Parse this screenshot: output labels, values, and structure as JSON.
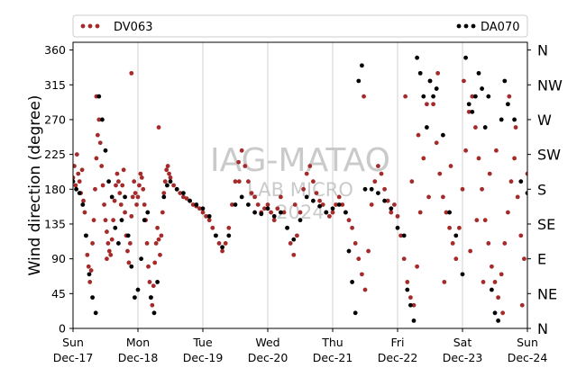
{
  "chart_data": {
    "type": "scatter",
    "ylabel": "Wind direction (degree)",
    "ylim": [
      0,
      370
    ],
    "yticks": [
      0,
      45,
      90,
      135,
      180,
      225,
      270,
      315,
      360
    ],
    "x_days": 7,
    "xticks": [
      {
        "day": "Sun",
        "date": "Dec-17"
      },
      {
        "day": "Mon",
        "date": "Dec-18"
      },
      {
        "day": "Tue",
        "date": "Dec-19"
      },
      {
        "day": "Wed",
        "date": "Dec-20"
      },
      {
        "day": "Thu",
        "date": "Dec-21"
      },
      {
        "day": "Fri",
        "date": "Dec-22"
      },
      {
        "day": "Sat",
        "date": "Dec-23"
      },
      {
        "day": "Sun",
        "date": "Dec-24"
      }
    ],
    "compass_labels": [
      "N",
      "NE",
      "E",
      "SE",
      "S",
      "SW",
      "W",
      "NW",
      "N"
    ],
    "grid": "vertical",
    "legend_placement": "top",
    "series": [
      {
        "name": "DV063",
        "color": "#a52a2a",
        "points": [
          [
            0.0,
            195
          ],
          [
            0.02,
            210
          ],
          [
            0.04,
            185
          ],
          [
            0.06,
            225
          ],
          [
            0.08,
            200
          ],
          [
            0.1,
            190
          ],
          [
            0.12,
            175
          ],
          [
            0.14,
            205
          ],
          [
            0.16,
            165
          ],
          [
            0.18,
            150
          ],
          [
            0.2,
            120
          ],
          [
            0.22,
            95
          ],
          [
            0.24,
            80
          ],
          [
            0.26,
            60
          ],
          [
            0.28,
            75
          ],
          [
            0.3,
            110
          ],
          [
            0.32,
            140
          ],
          [
            0.34,
            180
          ],
          [
            0.36,
            220
          ],
          [
            0.38,
            250
          ],
          [
            0.4,
            270
          ],
          [
            0.42,
            240
          ],
          [
            0.44,
            210
          ],
          [
            0.46,
            185
          ],
          [
            0.48,
            160
          ],
          [
            0.5,
            140
          ],
          [
            0.52,
            125
          ],
          [
            0.54,
            110
          ],
          [
            0.56,
            100
          ],
          [
            0.58,
            95
          ],
          [
            0.6,
            115
          ],
          [
            0.62,
            140
          ],
          [
            0.64,
            165
          ],
          [
            0.66,
            185
          ],
          [
            0.68,
            200
          ],
          [
            0.7,
            190
          ],
          [
            0.72,
            175
          ],
          [
            0.74,
            160
          ],
          [
            0.76,
            185
          ],
          [
            0.78,
            205
          ],
          [
            0.8,
            150
          ],
          [
            0.82,
            120
          ],
          [
            0.84,
            100
          ],
          [
            0.86,
            85
          ],
          [
            0.88,
            110
          ],
          [
            0.9,
            145
          ],
          [
            0.92,
            170
          ],
          [
            0.94,
            190
          ],
          [
            0.96,
            175
          ],
          [
            0.98,
            160
          ],
          [
            1.0,
            170
          ],
          [
            1.02,
            185
          ],
          [
            1.04,
            200
          ],
          [
            1.06,
            195
          ],
          [
            1.08,
            180
          ],
          [
            1.1,
            160
          ],
          [
            1.12,
            140
          ],
          [
            1.14,
            110
          ],
          [
            1.16,
            80
          ],
          [
            1.18,
            60
          ],
          [
            1.2,
            40
          ],
          [
            1.22,
            30
          ],
          [
            1.24,
            55
          ],
          [
            1.26,
            85
          ],
          [
            1.28,
            110
          ],
          [
            1.3,
            130
          ],
          [
            1.32,
            115
          ],
          [
            1.34,
            95
          ],
          [
            1.36,
            120
          ],
          [
            1.38,
            150
          ],
          [
            1.4,
            175
          ],
          [
            1.42,
            190
          ],
          [
            1.44,
            205
          ],
          [
            1.46,
            210
          ],
          [
            1.48,
            200
          ],
          [
            1.5,
            195
          ],
          [
            1.55,
            185
          ],
          [
            1.6,
            180
          ],
          [
            1.65,
            175
          ],
          [
            1.7,
            170
          ],
          [
            1.75,
            168
          ],
          [
            1.8,
            165
          ],
          [
            1.85,
            160
          ],
          [
            1.9,
            158
          ],
          [
            1.95,
            155
          ],
          [
            2.0,
            150
          ],
          [
            2.05,
            145
          ],
          [
            2.1,
            140
          ],
          [
            2.15,
            130
          ],
          [
            2.2,
            120
          ],
          [
            2.25,
            110
          ],
          [
            2.3,
            100
          ],
          [
            2.35,
            110
          ],
          [
            2.4,
            130
          ],
          [
            2.45,
            160
          ],
          [
            2.5,
            190
          ],
          [
            2.55,
            215
          ],
          [
            2.6,
            230
          ],
          [
            2.65,
            210
          ],
          [
            2.7,
            190
          ],
          [
            2.75,
            175
          ],
          [
            2.8,
            170
          ],
          [
            2.85,
            160
          ],
          [
            2.9,
            150
          ],
          [
            2.95,
            155
          ],
          [
            3.0,
            160
          ],
          [
            3.05,
            150
          ],
          [
            3.1,
            140
          ],
          [
            3.15,
            155
          ],
          [
            3.2,
            170
          ],
          [
            3.25,
            150
          ],
          [
            3.3,
            130
          ],
          [
            3.35,
            110
          ],
          [
            3.4,
            95
          ],
          [
            3.45,
            120
          ],
          [
            3.5,
            150
          ],
          [
            3.55,
            180
          ],
          [
            3.6,
            200
          ],
          [
            3.65,
            210
          ],
          [
            3.7,
            190
          ],
          [
            3.75,
            175
          ],
          [
            3.8,
            165
          ],
          [
            3.85,
            160
          ],
          [
            3.9,
            150
          ],
          [
            3.95,
            145
          ],
          [
            4.0,
            150
          ],
          [
            4.05,
            160
          ],
          [
            4.1,
            170
          ],
          [
            4.15,
            160
          ],
          [
            4.2,
            150
          ],
          [
            4.25,
            140
          ],
          [
            4.3,
            130
          ],
          [
            4.35,
            110
          ],
          [
            4.4,
            90
          ],
          [
            4.45,
            70
          ],
          [
            4.5,
            50
          ],
          [
            4.55,
            100
          ],
          [
            4.6,
            160
          ],
          [
            4.65,
            190
          ],
          [
            4.7,
            210
          ],
          [
            4.75,
            200
          ],
          [
            4.8,
            180
          ],
          [
            4.85,
            165
          ],
          [
            4.9,
            150
          ],
          [
            4.95,
            160
          ],
          [
            5.0,
            145
          ],
          [
            5.05,
            120
          ],
          [
            5.1,
            90
          ],
          [
            5.15,
            60
          ],
          [
            5.2,
            40
          ],
          [
            5.25,
            30
          ],
          [
            5.3,
            80
          ],
          [
            5.35,
            150
          ],
          [
            5.4,
            220
          ],
          [
            5.45,
            290
          ],
          [
            5.5,
            320
          ],
          [
            5.55,
            290
          ],
          [
            5.6,
            240
          ],
          [
            5.65,
            200
          ],
          [
            5.7,
            170
          ],
          [
            5.75,
            150
          ],
          [
            5.8,
            130
          ],
          [
            5.85,
            110
          ],
          [
            5.9,
            90
          ],
          [
            5.95,
            130
          ],
          [
            6.0,
            180
          ],
          [
            6.05,
            230
          ],
          [
            6.1,
            280
          ],
          [
            6.15,
            300
          ],
          [
            6.2,
            260
          ],
          [
            6.25,
            220
          ],
          [
            6.3,
            180
          ],
          [
            6.35,
            140
          ],
          [
            6.4,
            110
          ],
          [
            6.45,
            80
          ],
          [
            6.5,
            60
          ],
          [
            6.55,
            40
          ],
          [
            6.6,
            70
          ],
          [
            6.65,
            110
          ],
          [
            6.7,
            150
          ],
          [
            6.75,
            190
          ],
          [
            6.8,
            220
          ],
          [
            6.85,
            170
          ],
          [
            6.9,
            120
          ],
          [
            6.95,
            90
          ],
          [
            7.0,
            200
          ],
          [
            5.12,
            300
          ],
          [
            5.32,
            250
          ],
          [
            5.62,
            330
          ],
          [
            5.82,
            210
          ],
          [
            6.12,
            100
          ],
          [
            6.32,
            60
          ],
          [
            6.52,
            230
          ],
          [
            6.72,
            300
          ],
          [
            6.92,
            30
          ],
          [
            5.22,
            190
          ],
          [
            5.48,
            170
          ],
          [
            5.72,
            60
          ],
          [
            6.02,
            320
          ],
          [
            6.22,
            140
          ],
          [
            6.42,
            200
          ],
          [
            6.62,
            20
          ],
          [
            6.82,
            260
          ],
          [
            0.36,
            300
          ],
          [
            0.52,
            90
          ],
          [
            0.9,
            330
          ],
          [
            1.32,
            260
          ],
          [
            2.56,
            190
          ],
          [
            3.42,
            160
          ],
          [
            4.48,
            300
          ]
        ]
      },
      {
        "name": "DA070",
        "color": "#000000",
        "points": [
          [
            0.0,
            190
          ],
          [
            0.05,
            180
          ],
          [
            0.1,
            175
          ],
          [
            0.15,
            160
          ],
          [
            0.2,
            120
          ],
          [
            0.25,
            70
          ],
          [
            0.3,
            40
          ],
          [
            0.35,
            20
          ],
          [
            0.4,
            300
          ],
          [
            0.45,
            270
          ],
          [
            0.5,
            230
          ],
          [
            0.55,
            190
          ],
          [
            0.6,
            170
          ],
          [
            0.65,
            130
          ],
          [
            0.7,
            110
          ],
          [
            0.75,
            140
          ],
          [
            0.8,
            170
          ],
          [
            0.85,
            120
          ],
          [
            0.9,
            80
          ],
          [
            0.95,
            40
          ],
          [
            1.0,
            50
          ],
          [
            1.05,
            90
          ],
          [
            1.1,
            140
          ],
          [
            1.15,
            150
          ],
          [
            1.2,
            40
          ],
          [
            1.25,
            20
          ],
          [
            1.3,
            60
          ],
          [
            1.4,
            170
          ],
          [
            1.45,
            185
          ],
          [
            1.5,
            190
          ],
          [
            1.6,
            180
          ],
          [
            1.7,
            175
          ],
          [
            1.8,
            165
          ],
          [
            1.9,
            160
          ],
          [
            2.0,
            155
          ],
          [
            2.1,
            145
          ],
          [
            2.2,
            120
          ],
          [
            2.3,
            105
          ],
          [
            2.4,
            120
          ],
          [
            2.5,
            160
          ],
          [
            2.6,
            170
          ],
          [
            2.7,
            160
          ],
          [
            2.8,
            150
          ],
          [
            2.9,
            148
          ],
          [
            3.0,
            155
          ],
          [
            3.1,
            145
          ],
          [
            3.2,
            150
          ],
          [
            3.3,
            130
          ],
          [
            3.4,
            115
          ],
          [
            3.5,
            140
          ],
          [
            3.6,
            170
          ],
          [
            3.7,
            165
          ],
          [
            3.8,
            158
          ],
          [
            3.9,
            150
          ],
          [
            4.0,
            155
          ],
          [
            4.1,
            160
          ],
          [
            4.2,
            150
          ],
          [
            4.25,
            100
          ],
          [
            4.3,
            60
          ],
          [
            4.35,
            20
          ],
          [
            4.4,
            320
          ],
          [
            4.45,
            340
          ],
          [
            4.5,
            180
          ],
          [
            4.6,
            180
          ],
          [
            4.7,
            175
          ],
          [
            4.8,
            165
          ],
          [
            4.9,
            155
          ],
          [
            5.0,
            130
          ],
          [
            5.1,
            120
          ],
          [
            5.2,
            30
          ],
          [
            5.25,
            10
          ],
          [
            5.3,
            350
          ],
          [
            5.35,
            330
          ],
          [
            5.4,
            300
          ],
          [
            5.45,
            260
          ],
          [
            5.5,
            320
          ],
          [
            5.6,
            310
          ],
          [
            5.7,
            250
          ],
          [
            5.8,
            150
          ],
          [
            5.9,
            120
          ],
          [
            6.0,
            70
          ],
          [
            6.05,
            350
          ],
          [
            6.1,
            290
          ],
          [
            6.15,
            280
          ],
          [
            6.2,
            300
          ],
          [
            6.25,
            330
          ],
          [
            6.3,
            310
          ],
          [
            6.4,
            300
          ],
          [
            6.45,
            50
          ],
          [
            6.5,
            20
          ],
          [
            6.55,
            10
          ],
          [
            6.6,
            270
          ],
          [
            6.7,
            290
          ],
          [
            6.8,
            270
          ],
          [
            6.9,
            190
          ],
          [
            7.0,
            175
          ],
          [
            6.35,
            260
          ],
          [
            6.65,
            320
          ],
          [
            5.55,
            300
          ],
          [
            5.15,
            50
          ]
        ]
      }
    ],
    "watermark": [
      "IAG-MATAO",
      "LAB MICRO",
      "2024"
    ]
  }
}
